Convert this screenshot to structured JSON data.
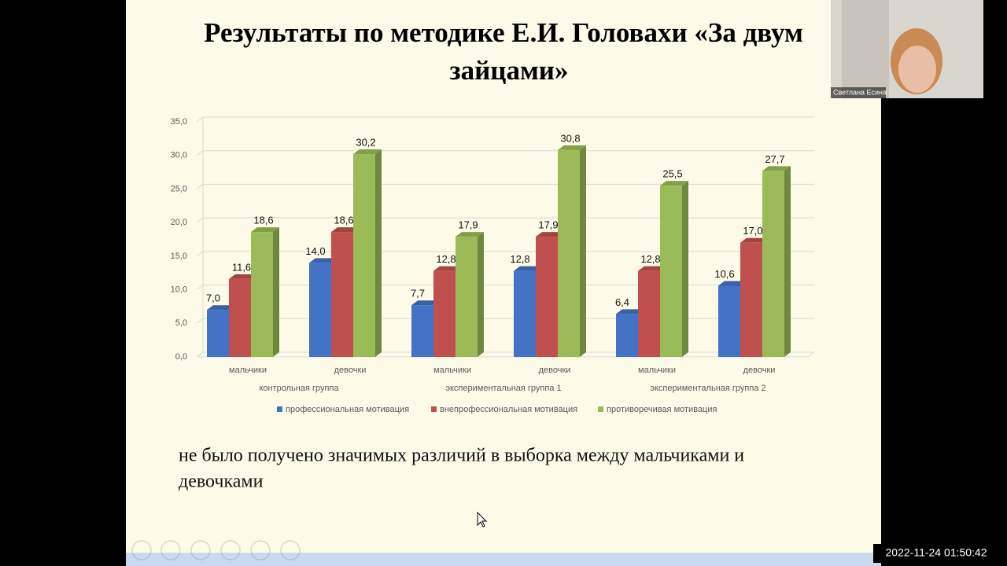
{
  "slide": {
    "title_lines": [
      "Результаты по методике Е.И. Головахи «За двум",
      "зайцами»"
    ],
    "caption_lines": [
      "не было получено значимых различий в выборка между мальчиками и",
      "девочками"
    ]
  },
  "chart_data": {
    "type": "bar",
    "categories": [
      "мальчики",
      "девочки",
      "мальчики",
      "девочки",
      "мальчики",
      "девочки"
    ],
    "groups": [
      "контрольная группа",
      "экспериментальная группа 1",
      "экспериментальная группа 2"
    ],
    "series": [
      {
        "name": "профессиональная мотивация",
        "color": "#4472c4",
        "values": [
          7.0,
          14.0,
          7.7,
          12.8,
          6.4,
          10.6
        ],
        "value_labels": [
          "7,0",
          "14,0",
          "7,7",
          "12,8",
          "6,4",
          "10,6"
        ]
      },
      {
        "name": "внепрофессиональная мотивация",
        "color": "#c0504d",
        "values": [
          11.6,
          18.6,
          12.8,
          17.9,
          12.8,
          17.0
        ],
        "value_labels": [
          "11,6",
          "18,6",
          "12,8",
          "17,9",
          "12,8",
          "17,0"
        ]
      },
      {
        "name": "противоречивая мотивация",
        "color": "#9bbb59",
        "values": [
          18.6,
          30.2,
          17.9,
          30.8,
          25.5,
          27.7
        ],
        "value_labels": [
          "18,6",
          "30,2",
          "17,9",
          "30,8",
          "25,5",
          "27,7"
        ]
      }
    ],
    "ylim": [
      0,
      35
    ],
    "yticks": [
      {
        "value": 0,
        "label": "0,0"
      },
      {
        "value": 5,
        "label": "5,0"
      },
      {
        "value": 10,
        "label": "10,0"
      },
      {
        "value": 15,
        "label": "15,0"
      },
      {
        "value": 20,
        "label": "20,0"
      },
      {
        "value": 25,
        "label": "25,0"
      },
      {
        "value": 30,
        "label": "30,0"
      },
      {
        "value": 35,
        "label": "35,0"
      }
    ],
    "grid": true,
    "legend": "bottom"
  },
  "video": {
    "participant_name": "Светлана Есина",
    "timestamp": "2022-11-24 01:50:42"
  }
}
